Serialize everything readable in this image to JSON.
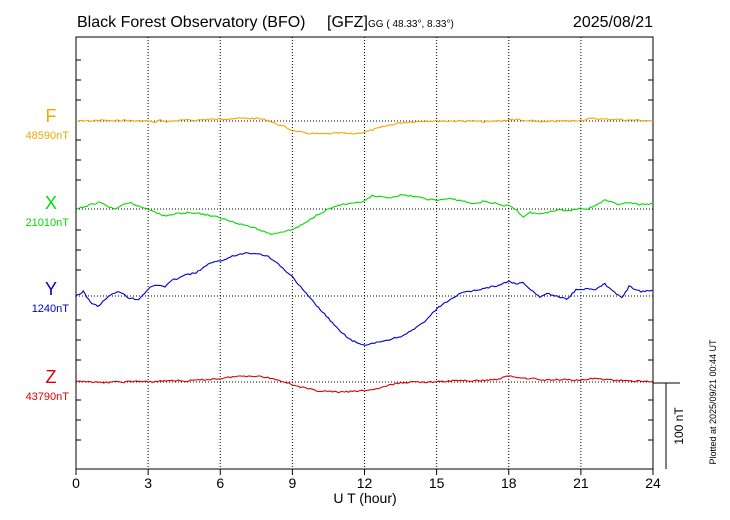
{
  "header": {
    "title": "Black Forest Observatory (BFO)",
    "org": "[GFZ]",
    "coords": "GG ( 48.33°,   8.33°)",
    "date": "2025/08/21"
  },
  "plotted_note": "Plotted at 2025/09/21 00:44 UT",
  "scale_label": "100 nT",
  "colors": {
    "F": "#f0a800",
    "X": "#00dd00",
    "Y": "#0000cc",
    "Z": "#dd0000",
    "grid": "#000000"
  },
  "chart_data": {
    "type": "line",
    "title": "Black Forest Observatory (BFO) [GFZ]",
    "xlabel": "U T (hour)",
    "xlim": [
      0,
      24
    ],
    "xticks": [
      0,
      3,
      6,
      9,
      12,
      15,
      18,
      21,
      24
    ],
    "xtick_labels": [
      "0",
      "3",
      "6",
      "9",
      "12",
      "15",
      "18",
      "21",
      "24"
    ],
    "scale_nT": 100,
    "series": [
      {
        "name": "F",
        "baseline_label": "48590nT",
        "baseline": 48590,
        "x": [
          0,
          0.5,
          1,
          1.5,
          2,
          2.5,
          3,
          3.3,
          3.5,
          3.8,
          4,
          4.5,
          5,
          5.5,
          6,
          6.5,
          7,
          7.5,
          8,
          8.3,
          8.7,
          9,
          9.5,
          10,
          10.5,
          11,
          11.5,
          12,
          12.5,
          13,
          13.5,
          14,
          14.5,
          15,
          15.5,
          16,
          16.5,
          17,
          17.5,
          18,
          18.3,
          18.6,
          19,
          19.5,
          20,
          20.5,
          21,
          21.5,
          22,
          22.5,
          23,
          23.5,
          24
        ],
        "values": [
          48590,
          48590,
          48591,
          48590,
          48591,
          48590,
          48590,
          48588,
          48591,
          48589,
          48590,
          48591,
          48591,
          48592,
          48592,
          48593,
          48593,
          48593,
          48591,
          48587,
          48583,
          48579,
          48576,
          48575,
          48575,
          48576,
          48575,
          48577,
          48581,
          48585,
          48588,
          48589,
          48590,
          48590,
          48590,
          48590,
          48590,
          48589,
          48590,
          48591,
          48592,
          48590,
          48590,
          48589,
          48590,
          48590,
          48591,
          48593,
          48592,
          48592,
          48591,
          48591,
          48590
        ]
      },
      {
        "name": "X",
        "baseline_label": "21010nT",
        "baseline": 21010,
        "x": [
          0,
          0.3,
          0.6,
          1,
          1.3,
          1.6,
          2,
          2.3,
          2.6,
          3,
          3.3,
          3.6,
          3.9,
          4.3,
          4.8,
          5.3,
          5.8,
          6.3,
          6.8,
          7.3,
          7.8,
          8.1,
          8.5,
          9,
          9.5,
          10,
          10.5,
          11,
          11.5,
          12,
          12.3,
          12.6,
          13,
          13.5,
          14,
          14.5,
          15,
          15.5,
          16,
          16.5,
          17,
          17.5,
          17.8,
          18,
          18.3,
          18.6,
          18.9,
          19.3,
          19.7,
          20,
          20.5,
          21,
          21.3,
          21.7,
          22,
          22.5,
          23,
          23.5,
          24
        ],
        "values": [
          21010,
          21012,
          21015,
          21018,
          21013,
          21010,
          21015,
          21017,
          21013,
          21010,
          21007,
          21002,
          21003,
          21005,
          21006,
          21004,
          21001,
          20997,
          20993,
          20989,
          20984,
          20981,
          20983,
          20986,
          20993,
          21003,
          21010,
          21015,
          21016,
          21019,
          21025,
          21024,
          21023,
          21026,
          21025,
          21022,
          21020,
          21022,
          21020,
          21016,
          21019,
          21016,
          21013,
          21015,
          21009,
          21001,
          21006,
          21004,
          21007,
          21009,
          21008,
          21011,
          21010,
          21016,
          21020,
          21016,
          21017,
          21015,
          21016
        ]
      },
      {
        "name": "Y",
        "baseline_label": "1240nT",
        "baseline": 1240,
        "x": [
          0,
          0.3,
          0.6,
          0.9,
          1.2,
          1.5,
          1.8,
          2.2,
          2.6,
          3,
          3.3,
          3.7,
          4,
          4.5,
          5,
          5.5,
          6,
          6.5,
          7,
          7.5,
          8,
          8.5,
          9,
          9.5,
          10,
          10.5,
          11,
          11.5,
          12,
          12.5,
          13,
          13.5,
          14,
          14.5,
          15,
          15.5,
          16,
          16.5,
          17,
          17.5,
          18,
          18.3,
          18.6,
          19,
          19.3,
          19.6,
          20,
          20.4,
          20.8,
          21.2,
          21.6,
          22,
          22.4,
          22.7,
          23,
          23.5,
          24
        ],
        "values": [
          1240,
          1245,
          1233,
          1228,
          1235,
          1243,
          1245,
          1238,
          1236,
          1248,
          1253,
          1251,
          1258,
          1264,
          1267,
          1277,
          1281,
          1286,
          1290,
          1290,
          1286,
          1275,
          1262,
          1245,
          1229,
          1214,
          1198,
          1188,
          1182,
          1186,
          1189,
          1193,
          1200,
          1210,
          1225,
          1235,
          1243,
          1246,
          1249,
          1252,
          1257,
          1254,
          1255,
          1245,
          1239,
          1243,
          1240,
          1236,
          1247,
          1248,
          1248,
          1254,
          1244,
          1238,
          1251,
          1245,
          1247
        ]
      },
      {
        "name": "Z",
        "baseline_label": "43790nT",
        "baseline": 43790,
        "x": [
          0,
          0.5,
          1,
          1.5,
          2,
          2.5,
          3,
          3.5,
          4,
          4.5,
          5,
          5.5,
          6,
          6.5,
          7,
          7.5,
          8,
          8.3,
          8.7,
          9,
          9.5,
          10,
          10.5,
          11,
          11.5,
          12,
          12.5,
          13,
          13.5,
          14,
          14.5,
          15,
          15.5,
          16,
          16.5,
          17,
          17.5,
          18,
          18.5,
          19,
          19.5,
          20,
          20.5,
          21,
          21.5,
          22,
          22.5,
          23,
          23.5,
          24
        ],
        "values": [
          43790,
          43791,
          43789,
          43790,
          43790,
          43791,
          43790,
          43791,
          43792,
          43791,
          43792,
          43793,
          43794,
          43796,
          43797,
          43797,
          43795,
          43793,
          43790,
          43787,
          43783,
          43780,
          43779,
          43778,
          43779,
          43780,
          43782,
          43786,
          43789,
          43790,
          43790,
          43790,
          43791,
          43792,
          43791,
          43792,
          43793,
          43797,
          43795,
          43794,
          43792,
          43793,
          43793,
          43792,
          43794,
          43793,
          43792,
          43791,
          43791,
          43791
        ]
      }
    ]
  }
}
